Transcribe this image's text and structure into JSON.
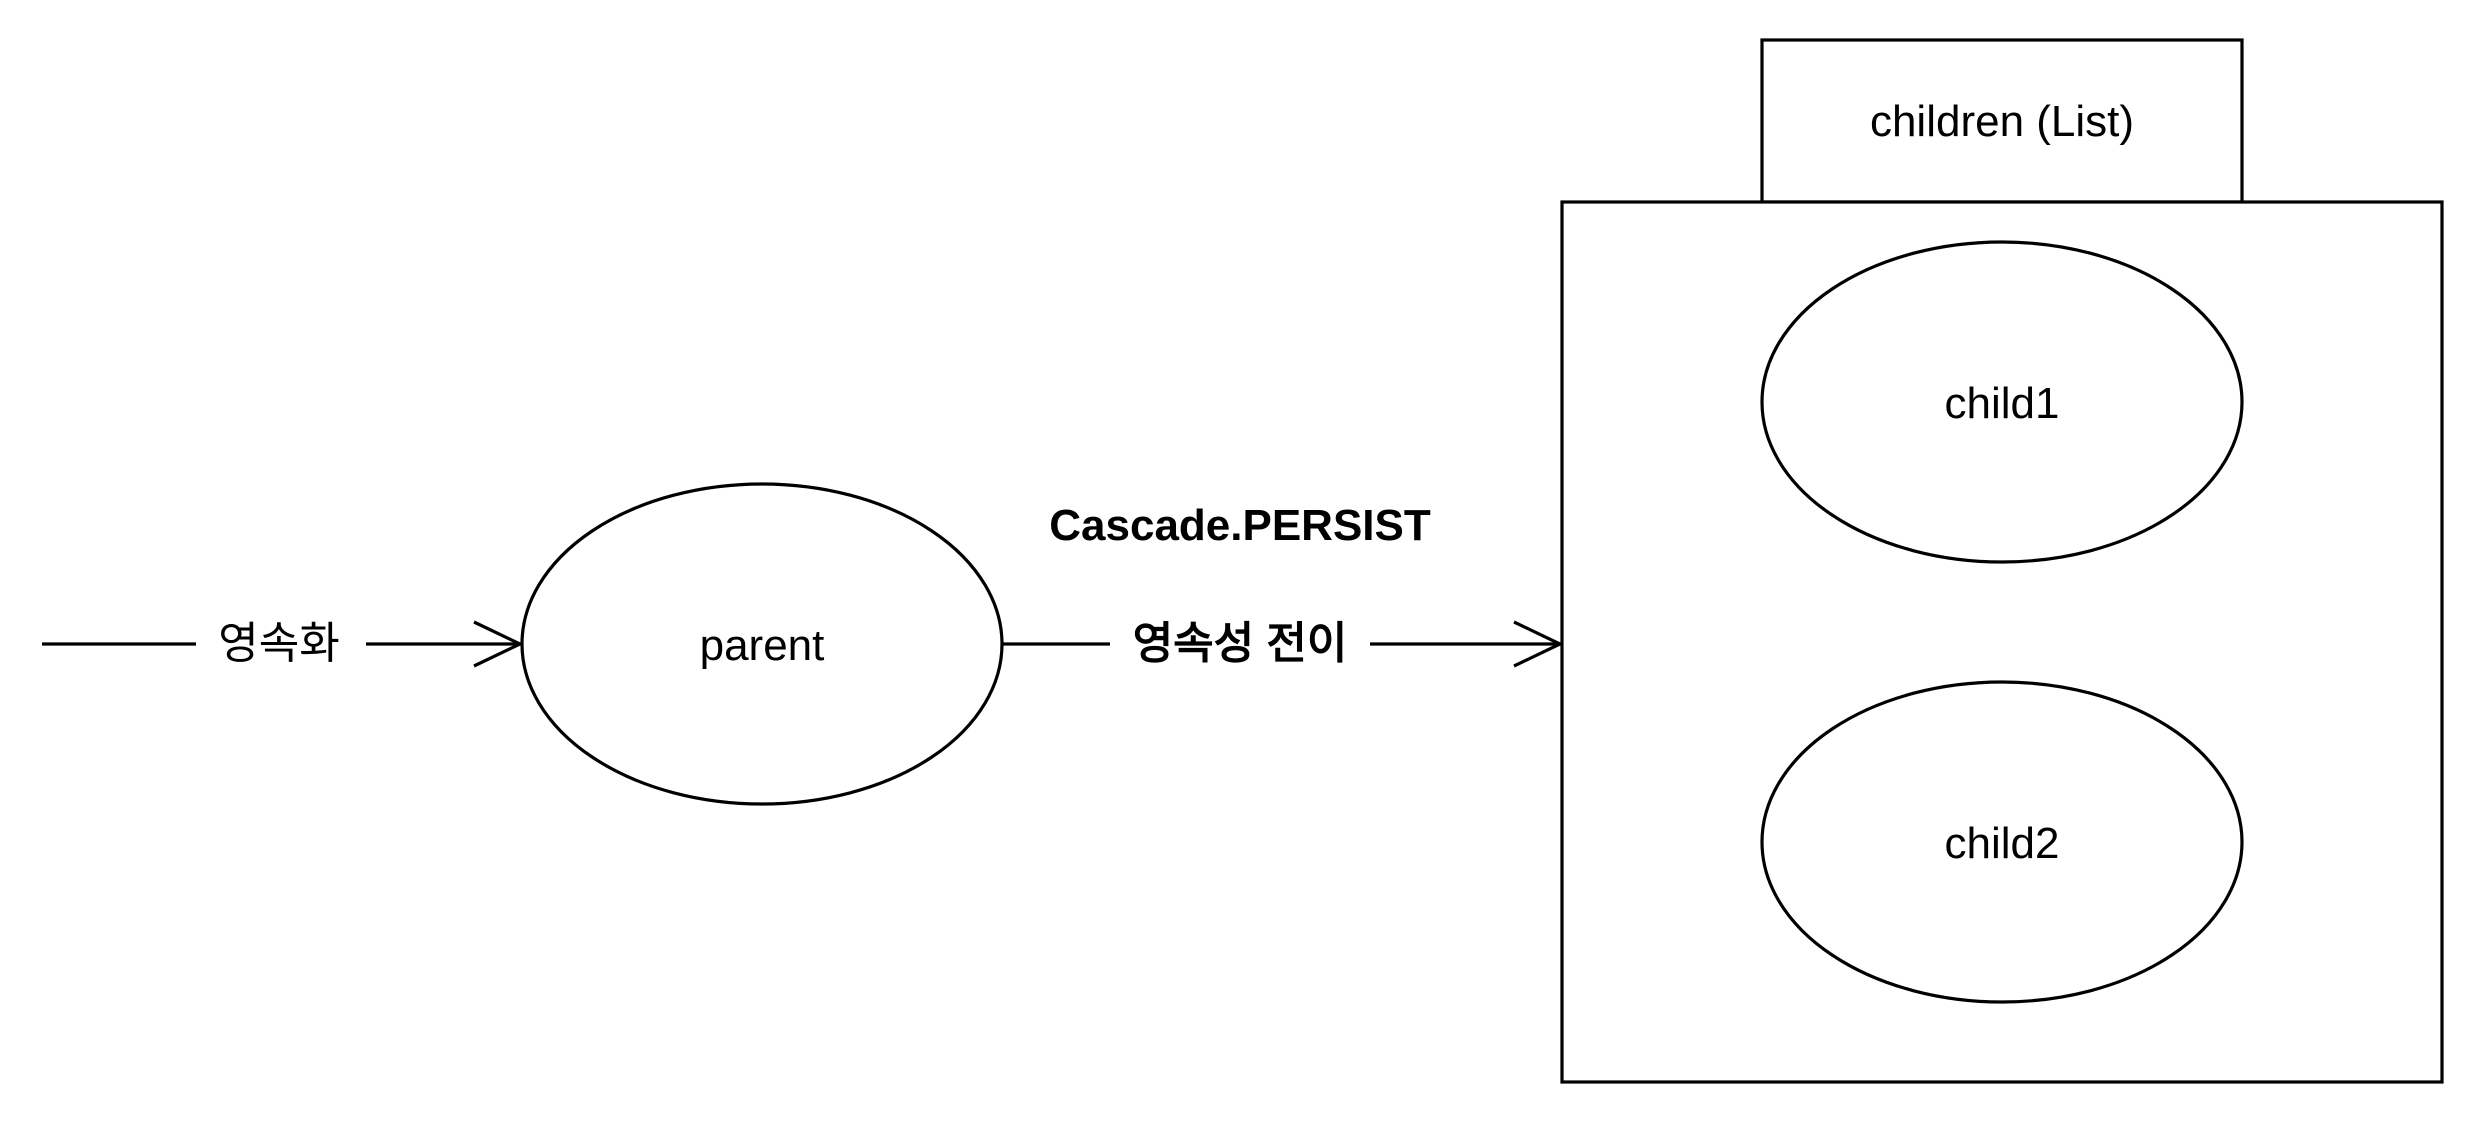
{
  "nodes": {
    "parent": "parent",
    "child1": "child1",
    "child2": "child2",
    "children_tab": "children (List)"
  },
  "edges": {
    "persist_label": "영속화",
    "cascade_title": "Cascade.PERSIST",
    "cascade_label": "영속성 전이"
  },
  "colors": {
    "stroke": "#000000",
    "fill": "#ffffff"
  }
}
